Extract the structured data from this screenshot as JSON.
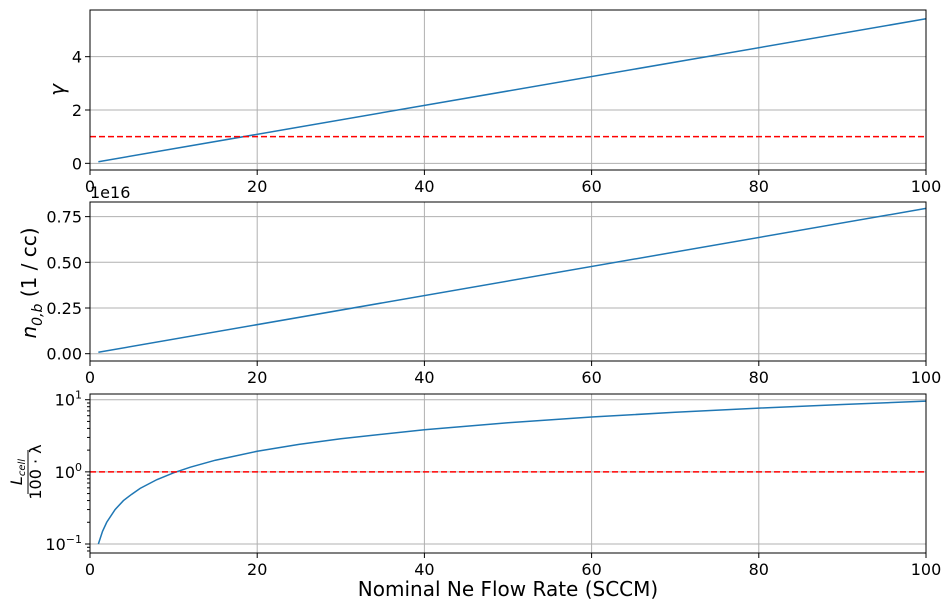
{
  "chart_data": [
    {
      "type": "line",
      "ylabel": "γ",
      "xlim": [
        0,
        100
      ],
      "ylim": [
        -0.25,
        5.75
      ],
      "grid": true,
      "x_ticks": [
        0,
        20,
        40,
        60,
        80,
        100
      ],
      "x_tick_labels": [
        "0",
        "20",
        "40",
        "60",
        "80",
        "100"
      ],
      "y_ticks": [
        0,
        2,
        4
      ],
      "y_tick_labels": [
        "0",
        "2",
        "4"
      ],
      "series": [
        {
          "x": [
            1,
            100
          ],
          "y": [
            0.06,
            5.42
          ],
          "color": "#1f77b4",
          "style": "solid"
        },
        {
          "x": [
            0,
            100
          ],
          "y": [
            1,
            1
          ],
          "color": "#ff0000",
          "style": "dashed"
        }
      ]
    },
    {
      "type": "line",
      "ylabel_main": "n",
      "ylabel_sub": "0,b",
      "ylabel_unit": " (1 / cc)",
      "offset_text": "1e16",
      "xlim": [
        0,
        100
      ],
      "ylim": [
        -0.04,
        0.83
      ],
      "grid": true,
      "x_ticks": [
        0,
        20,
        40,
        60,
        80,
        100
      ],
      "x_tick_labels": [
        "0",
        "20",
        "40",
        "60",
        "80",
        "100"
      ],
      "y_ticks": [
        0,
        0.25,
        0.5,
        0.75
      ],
      "y_tick_labels": [
        "0.00",
        "0.25",
        "0.50",
        "0.75"
      ],
      "series": [
        {
          "x": [
            1,
            100
          ],
          "y": [
            0.008,
            0.795
          ],
          "color": "#1f77b4",
          "style": "solid"
        }
      ]
    },
    {
      "type": "line",
      "ylabel_num": "L",
      "ylabel_num_sub": "cell",
      "ylabel_den": "100 · λ",
      "xlabel": "Nominal Ne Flow Rate (SCCM)",
      "xlim": [
        0,
        100
      ],
      "ylim": [
        0.075,
        12
      ],
      "yscale": "log",
      "grid": true,
      "x_ticks": [
        0,
        20,
        40,
        60,
        80,
        100
      ],
      "x_tick_labels": [
        "0",
        "20",
        "40",
        "60",
        "80",
        "100"
      ],
      "y_ticks": [
        0.1,
        1,
        10
      ],
      "y_tick_bases": [
        "10",
        "10",
        "10"
      ],
      "y_tick_exps": [
        "−1",
        "0",
        "1"
      ],
      "series": [
        {
          "x": [
            1,
            1.5,
            2,
            3,
            4,
            5,
            6,
            8,
            10,
            12,
            15,
            20,
            25,
            30,
            40,
            50,
            60,
            70,
            80,
            90,
            100
          ],
          "y": [
            0.1,
            0.15,
            0.2,
            0.3,
            0.4,
            0.49,
            0.59,
            0.78,
            0.97,
            1.16,
            1.45,
            1.93,
            2.4,
            2.88,
            3.84,
            4.8,
            5.75,
            6.7,
            7.65,
            8.6,
            9.55
          ],
          "color": "#1f77b4",
          "style": "solid"
        },
        {
          "x": [
            0,
            100
          ],
          "y": [
            1,
            1
          ],
          "color": "#ff0000",
          "style": "dashed"
        }
      ]
    }
  ]
}
